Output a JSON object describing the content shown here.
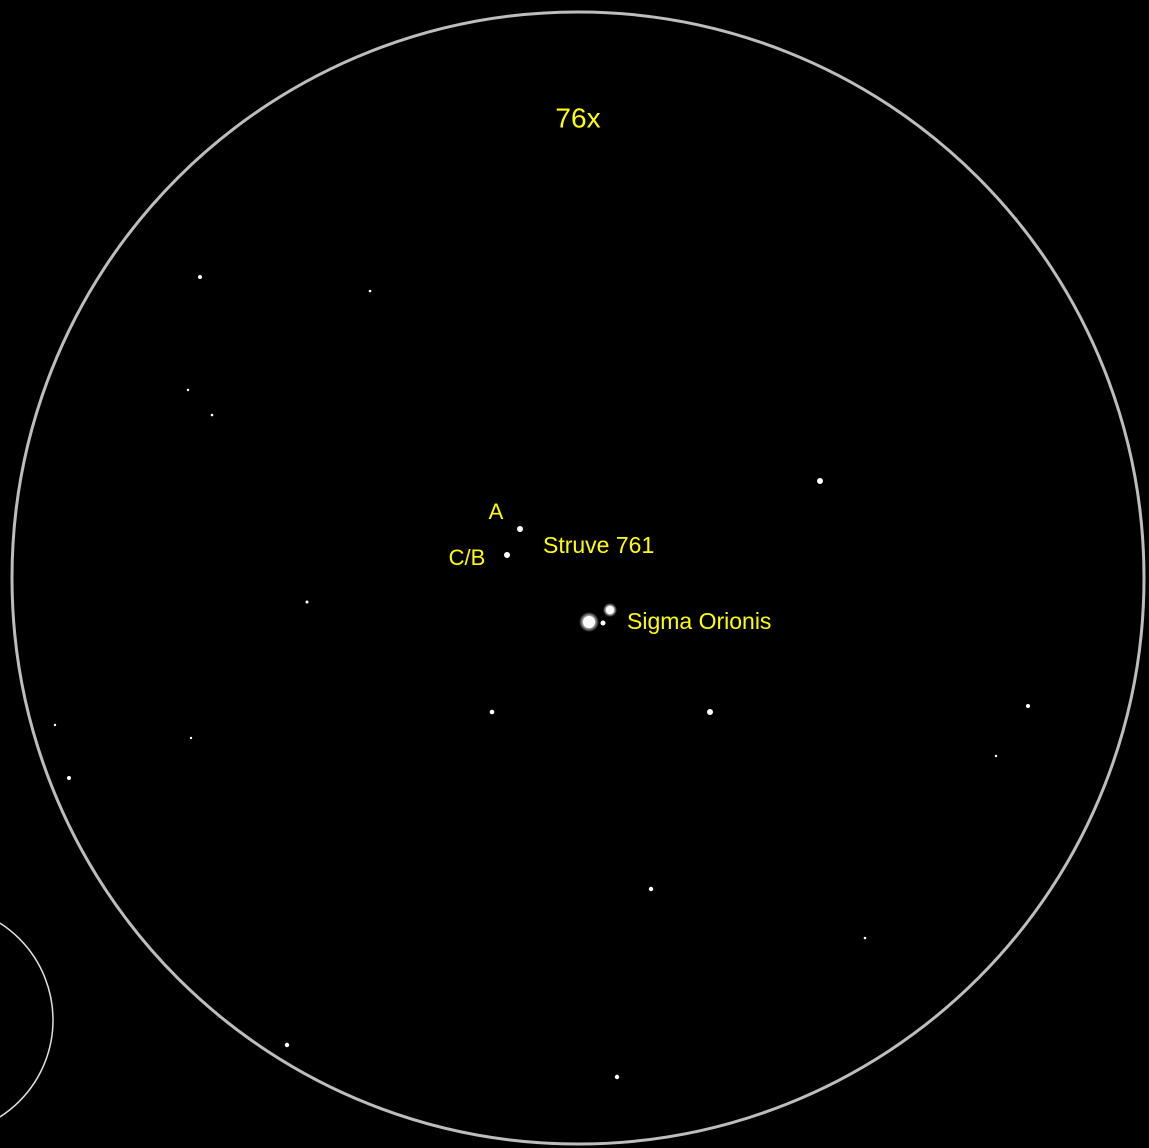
{
  "labels": {
    "magnification": "76x",
    "struve_a": "A",
    "struve_cb": "C/B",
    "struve_name": "Struve 761",
    "sigma": "Sigma Orionis"
  }
}
